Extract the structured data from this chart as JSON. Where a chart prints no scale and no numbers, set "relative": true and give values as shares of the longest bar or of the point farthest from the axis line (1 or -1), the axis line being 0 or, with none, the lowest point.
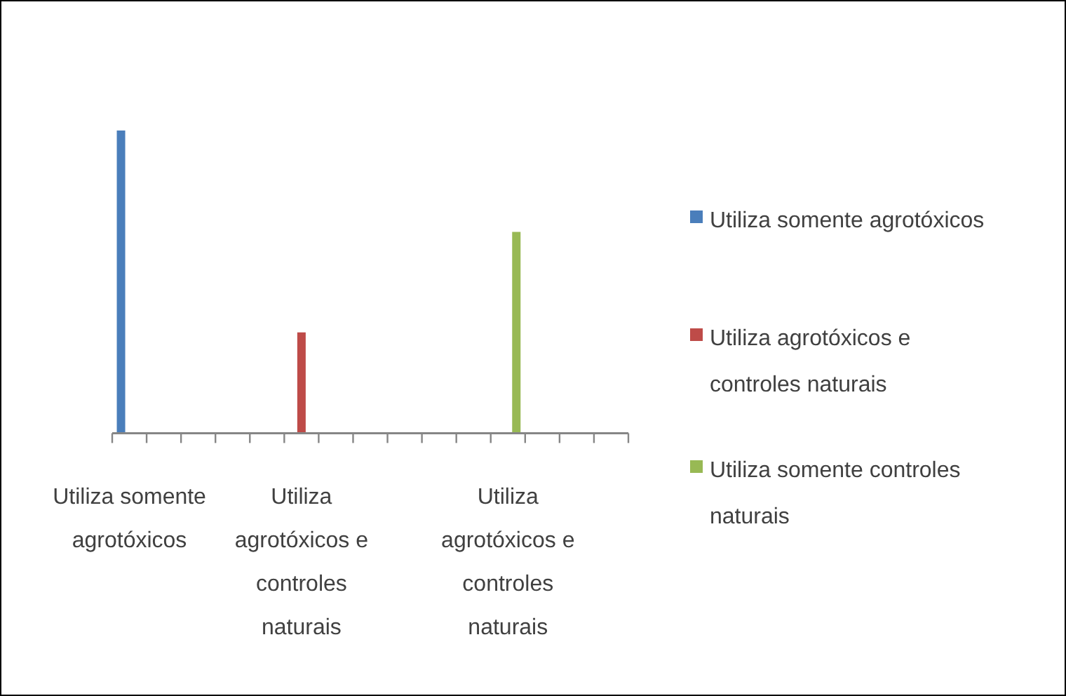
{
  "chart_data": {
    "type": "bar",
    "relative": true,
    "legend": "right",
    "categories": [
      "Utiliza somente agrotóxicos",
      null,
      null,
      null,
      null,
      "Utiliza agrotóxicos e controles naturais",
      null,
      null,
      null,
      null,
      null,
      "Utiliza agrotóxicos e controles naturais",
      null,
      null,
      null
    ],
    "series": [
      {
        "name": "Utiliza somente agrotóxicos",
        "color": "#4a7ebb",
        "values": [
          1,
          null,
          null,
          null,
          null,
          null,
          null,
          null,
          null,
          null,
          null,
          null,
          null,
          null,
          null
        ]
      },
      {
        "name": "Utiliza agrotóxicos e controles naturais",
        "color": "#be4b48",
        "values": [
          null,
          null,
          null,
          null,
          null,
          0.333,
          null,
          null,
          null,
          null,
          null,
          null,
          null,
          null,
          null
        ]
      },
      {
        "name": "Utiliza somente controles naturais",
        "color": "#98b954",
        "values": [
          null,
          null,
          null,
          null,
          null,
          null,
          null,
          null,
          null,
          null,
          null,
          0.665,
          null,
          null,
          null
        ]
      }
    ]
  }
}
